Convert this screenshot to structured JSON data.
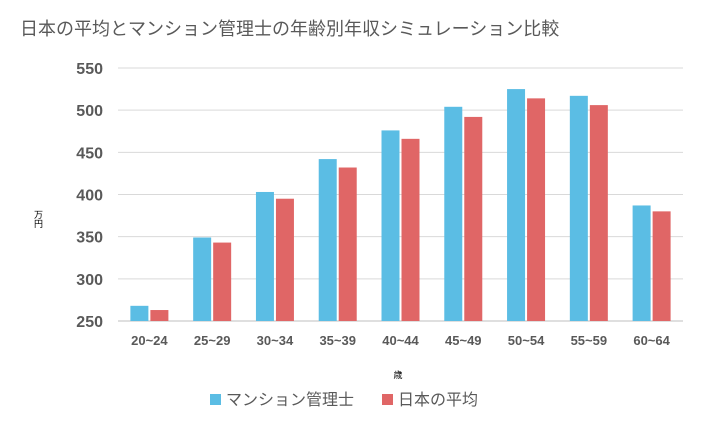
{
  "chart_data": {
    "type": "bar",
    "title": "日本の平均とマンション管理士の年齢別年収シミュレーション比較",
    "xlabel": "歳",
    "ylabel": "万円",
    "categories": [
      "20~24",
      "25~29",
      "30~34",
      "35~39",
      "40~44",
      "45~49",
      "50~54",
      "55~59",
      "60~64"
    ],
    "series": [
      {
        "name": "マンション管理士",
        "color": "#5BBDE4",
        "values": [
          268,
          349,
          403,
          442,
          476,
          504,
          525,
          517,
          387
        ]
      },
      {
        "name": "日本の平均",
        "color": "#E06666",
        "values": [
          263,
          343,
          395,
          432,
          466,
          492,
          514,
          506,
          380
        ]
      }
    ],
    "ylim": [
      250,
      550
    ],
    "yticks": [
      250,
      300,
      350,
      400,
      450,
      500,
      550
    ],
    "grid": true,
    "legend": "bottom"
  }
}
